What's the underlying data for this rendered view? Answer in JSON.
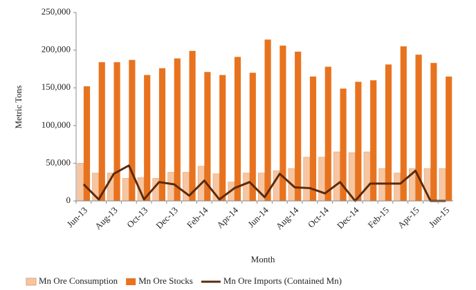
{
  "chart_data": {
    "type": "bar",
    "y_label": "Metric Tons",
    "x_label": "Month",
    "categories": [
      "Jun-13",
      null,
      "Aug-13",
      null,
      "Oct-13",
      null,
      "Dec-13",
      null,
      "Feb-14",
      null,
      "Apr-14",
      null,
      "Jun-14",
      null,
      "Aug-14",
      null,
      "Oct-14",
      null,
      "Dec-14",
      null,
      "Feb-15",
      null,
      "Apr-15",
      null,
      "Jun-15"
    ],
    "series": [
      {
        "name": "Mn Ore Consumption",
        "type": "bar",
        "color": "#f6c6a2",
        "values": [
          50000,
          37000,
          37000,
          30000,
          31000,
          30000,
          38000,
          38000,
          46000,
          36000,
          25000,
          37000,
          37000,
          40000,
          43000,
          58000,
          58000,
          65000,
          64000,
          65000,
          43000,
          37000,
          43000,
          43000,
          43000
        ]
      },
      {
        "name": "Mn Ore Stocks",
        "type": "bar",
        "color": "#e8731f",
        "values": [
          152000,
          184000,
          184000,
          187000,
          167000,
          176000,
          189000,
          199000,
          171000,
          167000,
          191000,
          170000,
          214000,
          206000,
          198000,
          165000,
          178000,
          149000,
          158000,
          160000,
          181000,
          205000,
          194000,
          183000,
          165000
        ]
      },
      {
        "name": "Mn Ore Imports (Contained Mn)",
        "type": "line",
        "color": "#5a2a0a",
        "values": [
          22000,
          2000,
          36000,
          47000,
          2000,
          25000,
          22000,
          7000,
          27000,
          2000,
          17000,
          25000,
          5000,
          36000,
          18000,
          17000,
          10000,
          25000,
          0,
          23000,
          23000,
          23000,
          40000,
          0,
          0
        ]
      }
    ],
    "ylim": [
      0,
      250000
    ],
    "yticks": [
      0,
      {
        "value": 50000,
        "label": "50,000"
      },
      {
        "value": 100000,
        "label": "100,000"
      },
      {
        "value": 150000,
        "label": "150,000"
      },
      {
        "value": 200000,
        "label": "200,000"
      },
      {
        "value": 250000,
        "label": "250,000"
      }
    ],
    "legend": "bottom"
  }
}
